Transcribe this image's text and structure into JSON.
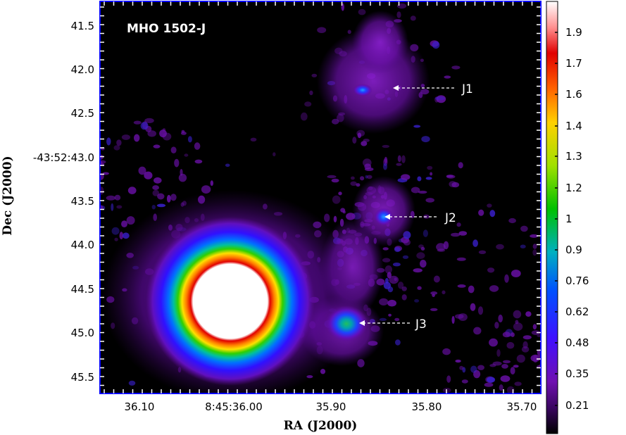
{
  "figure": {
    "title": "MHO 1502-J",
    "xlabel": "RA (J2000)",
    "ylabel": "Dec (J2000)",
    "x_ticks": [
      "36.10",
      "8:45:36.00",
      "35.90",
      "35.80",
      "35.70"
    ],
    "y_ticks": [
      "41.5",
      "42.0",
      "42.5",
      "-43:52:43.0",
      "43.5",
      "44.0",
      "44.5",
      "45.0",
      "45.5"
    ],
    "annotations": [
      "J1",
      "J2",
      "J3"
    ],
    "colorbar_ticks": [
      "1.9",
      "1.7",
      "1.6",
      "1.4",
      "1.3",
      "1.2",
      "1",
      "0.9",
      "0.76",
      "0.62",
      "0.48",
      "0.35",
      "0.21"
    ],
    "colors": {
      "background": "#000000",
      "frame": "#0000ff",
      "emission": "#7a10b0",
      "saturated_core": "#ffffff",
      "annotation": "#ffffff"
    }
  }
}
